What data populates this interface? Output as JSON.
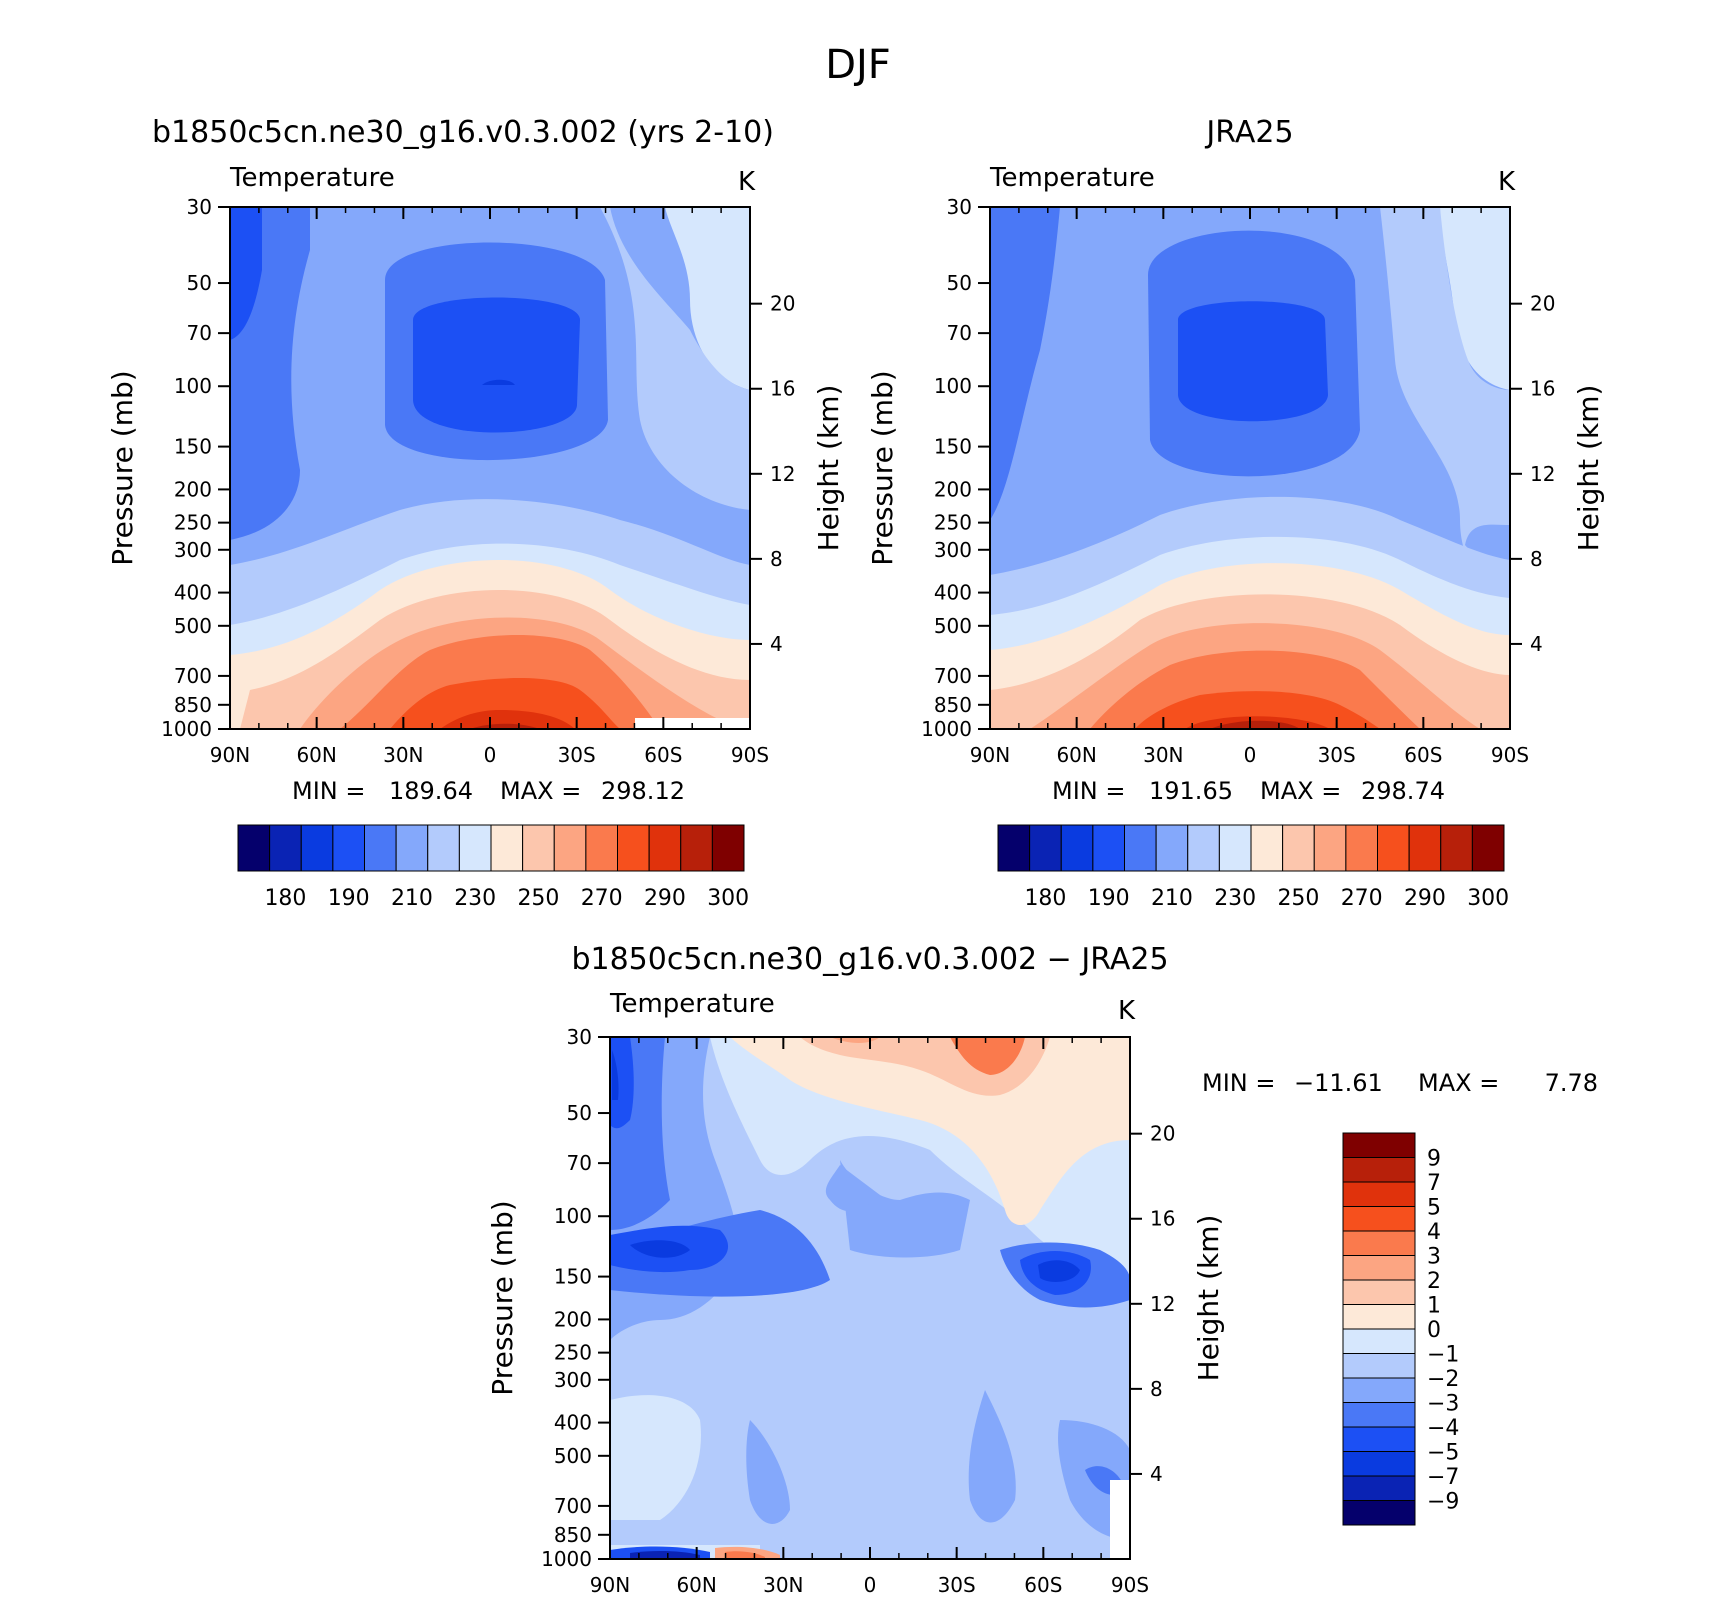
{
  "page_title": "DJF",
  "chart_data": [
    {
      "type": "contour",
      "title": "b1850c5cn.ne30_g16.v0.3.002 (yrs 2-10)",
      "variable": "Temperature",
      "units": "K",
      "ylabel": "Pressure (mb)",
      "ylabel_right": "Height (km)",
      "x_ticks": [
        "90N",
        "60N",
        "30N",
        "0",
        "30S",
        "60S",
        "90S"
      ],
      "y_ticks": [
        "30",
        "50",
        "70",
        "100",
        "150",
        "200",
        "250",
        "300",
        "400",
        "500",
        "700",
        "850",
        "1000"
      ],
      "height_ticks": [
        "20",
        "16",
        "12",
        "8",
        "4"
      ],
      "min": "189.64",
      "max": "298.12",
      "colorbar_labels": [
        "180",
        "190",
        "210",
        "230",
        "250",
        "270",
        "290",
        "300"
      ]
    },
    {
      "type": "contour",
      "title": "JRA25",
      "variable": "Temperature",
      "units": "K",
      "ylabel": "Pressure (mb)",
      "ylabel_right": "Height (km)",
      "x_ticks": [
        "90N",
        "60N",
        "30N",
        "0",
        "30S",
        "60S",
        "90S"
      ],
      "y_ticks": [
        "30",
        "50",
        "70",
        "100",
        "150",
        "200",
        "250",
        "300",
        "400",
        "500",
        "700",
        "850",
        "1000"
      ],
      "height_ticks": [
        "20",
        "16",
        "12",
        "8",
        "4"
      ],
      "min": "191.65",
      "max": "298.74",
      "colorbar_labels": [
        "180",
        "190",
        "210",
        "230",
        "250",
        "270",
        "290",
        "300"
      ]
    },
    {
      "type": "contour",
      "title": "b1850c5cn.ne30_g16.v0.3.002 − JRA25",
      "variable": "Temperature",
      "units": "K",
      "ylabel": "Pressure (mb)",
      "ylabel_right": "Height (km)",
      "x_ticks": [
        "90N",
        "60N",
        "30N",
        "0",
        "30S",
        "60S",
        "90S"
      ],
      "y_ticks": [
        "30",
        "50",
        "70",
        "100",
        "150",
        "200",
        "250",
        "300",
        "400",
        "500",
        "700",
        "850",
        "1000"
      ],
      "height_ticks": [
        "20",
        "16",
        "12",
        "8",
        "4"
      ],
      "min": "−11.61",
      "max": "7.78",
      "colorbar_labels": [
        "9",
        "7",
        "5",
        "4",
        "3",
        "2",
        "1",
        "0",
        "−1",
        "−2",
        "−3",
        "−4",
        "−5",
        "−7",
        "−9"
      ]
    }
  ],
  "palettes": {
    "temperature": [
      "#05006c",
      "#0a23b4",
      "#0a3be0",
      "#1c50f4",
      "#4a78f6",
      "#84a8fb",
      "#b3cbfc",
      "#d6e7fd",
      "#fde9d8",
      "#fcc6ad",
      "#fca582",
      "#fa7a4d",
      "#f6501d",
      "#e0320c",
      "#b7200a",
      "#7f0000"
    ],
    "difference": [
      "#7f0000",
      "#b7200a",
      "#e0320c",
      "#f6501d",
      "#fa7a4d",
      "#fca582",
      "#fcc6ad",
      "#fde9d8",
      "#d6e7fd",
      "#b3cbfc",
      "#84a8fb",
      "#4a78f6",
      "#1c50f4",
      "#0a3be0",
      "#0a23b4",
      "#05006c"
    ]
  }
}
